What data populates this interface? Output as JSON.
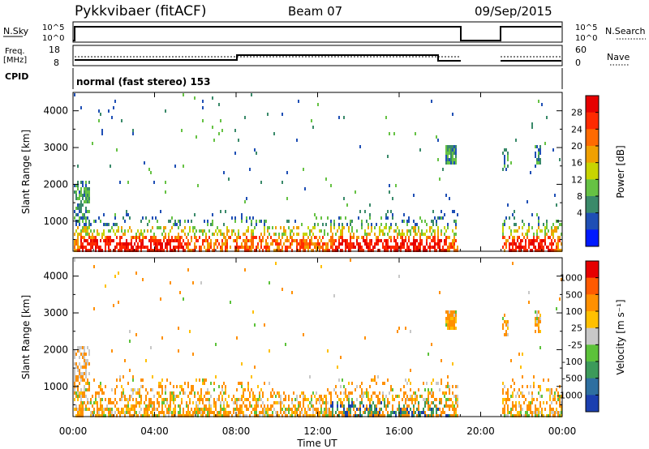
{
  "header": {
    "station": "Pykkvibaer (fitACF)",
    "beam": "Beam 07",
    "date": "09/Sep/2015"
  },
  "noise_panel": {
    "left_label": "N.Sky",
    "left_top_tick": "10^5",
    "left_bottom_tick": "10^0",
    "right_label": "N.Search",
    "right_top_tick": "10^5",
    "right_bottom_tick": "10^0"
  },
  "freq_panel": {
    "left_label_1": "Freq.",
    "left_label_2": "[MHz]",
    "left_top_tick": "18",
    "left_bottom_tick": "8",
    "right_label": "Nave",
    "right_top_tick": "60",
    "right_bottom_tick": "0"
  },
  "cpid": {
    "label": "CPID",
    "mode": "normal (fast stereo) 153"
  },
  "time_axis": {
    "label": "Time UT",
    "ticks": [
      "00:00",
      "04:00",
      "08:00",
      "12:00",
      "16:00",
      "20:00",
      "00:00"
    ]
  },
  "chart_data": [
    {
      "type": "heatmap",
      "name": "power",
      "ylabel": "Slant Range [km]",
      "xlabel": "Time UT",
      "xlim_hours": [
        0,
        24
      ],
      "ylim": [
        180,
        4500
      ],
      "yticks": [
        "1000",
        "2000",
        "3000",
        "4000"
      ],
      "colorbar": {
        "label": "Power [dB]",
        "ticks": [
          "28",
          "24",
          "20",
          "16",
          "12",
          "8",
          "4"
        ],
        "colors": [
          "#0019ff",
          "#1f4fb5",
          "#3a8a6a",
          "#66c244",
          "#c8d400",
          "#f0a000",
          "#ff6a00",
          "#ff2a00",
          "#e60000"
        ]
      },
      "data_gap_hours": [
        18.9,
        21.0
      ]
    },
    {
      "type": "heatmap",
      "name": "velocity",
      "ylabel": "Slant Range [km]",
      "xlabel": "Time UT",
      "xlim_hours": [
        0,
        24
      ],
      "ylim": [
        180,
        4500
      ],
      "yticks": [
        "1000",
        "2000",
        "3000",
        "4000"
      ],
      "colorbar": {
        "label": "Velocity [m s⁻¹]",
        "ticks": [
          "1000",
          "500",
          "100",
          "25",
          "-25",
          "-100",
          "-500",
          "-1000"
        ],
        "colors": [
          "#1b3fb0",
          "#2e6fa0",
          "#3c9a5a",
          "#5cc23a",
          "#c8c8c8",
          "#ffc000",
          "#ff9000",
          "#ff5a00",
          "#e60000"
        ]
      },
      "data_gap_hours": [
        18.9,
        21.0
      ]
    }
  ]
}
